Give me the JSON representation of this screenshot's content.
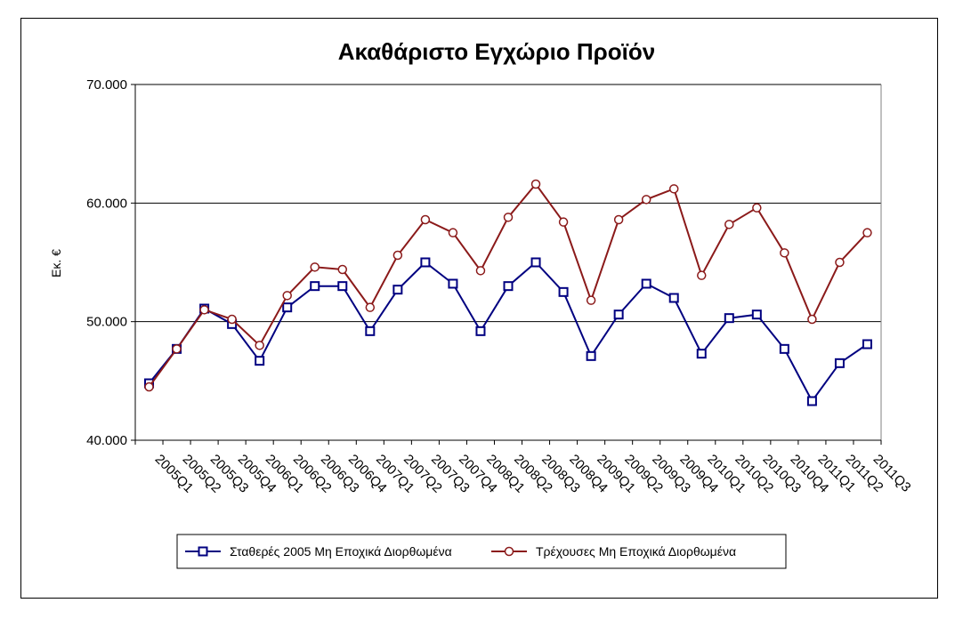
{
  "chart_data": {
    "type": "line",
    "title": "Ακαθάριστο Εγχώριο Προϊόν",
    "ylabel": "Εκ. €",
    "xlabel": "",
    "ylim": [
      40000,
      70000
    ],
    "yticks": [
      40000,
      50000,
      60000,
      70000
    ],
    "ytick_labels": [
      "40.000",
      "50.000",
      "60.000",
      "70.000"
    ],
    "grid": "horizontal",
    "legend_position": "bottom",
    "categories": [
      "2005Q1",
      "2005Q2",
      "2005Q3",
      "2005Q4",
      "2006Q1",
      "2006Q2",
      "2006Q3",
      "2006Q4",
      "2007Q1",
      "2007Q2",
      "2007Q3",
      "2007Q4",
      "2008Q1",
      "2008Q2",
      "2008Q3",
      "2008Q4",
      "2009Q1",
      "2009Q2",
      "2009Q3",
      "2009Q4",
      "2010Q1",
      "2010Q2",
      "2010Q3",
      "2010Q4",
      "2011Q1",
      "2011Q2",
      "2011Q3"
    ],
    "series": [
      {
        "name": "Σταθερές 2005 Μη Εποχικά Διορθωμένα",
        "color": "#000080",
        "marker": "square",
        "values": [
          44800,
          47700,
          51100,
          49800,
          46700,
          51200,
          53000,
          53000,
          49200,
          52700,
          55000,
          53200,
          49200,
          53000,
          55000,
          52500,
          47100,
          50600,
          53200,
          52000,
          47300,
          50300,
          50600,
          47700,
          43300,
          46500,
          48100
        ]
      },
      {
        "name": "Τρέχουσες Μη Εποχικά Διορθωμένα",
        "color": "#8b1a1a",
        "marker": "circle",
        "values": [
          44500,
          47700,
          51000,
          50200,
          48000,
          52200,
          54600,
          54400,
          51200,
          55600,
          58600,
          57500,
          54300,
          58800,
          61600,
          58400,
          51800,
          58600,
          60300,
          61200,
          53900,
          58200,
          59600,
          55800,
          50200,
          55000,
          57500
        ]
      }
    ]
  }
}
